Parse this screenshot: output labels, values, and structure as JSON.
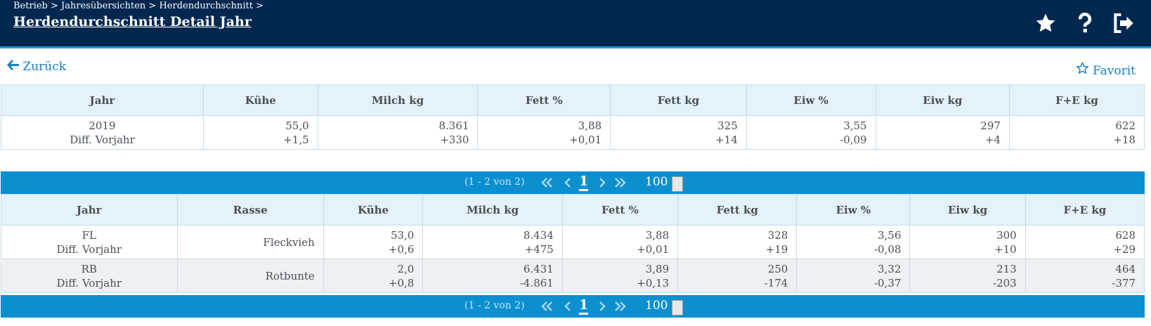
{
  "header": {
    "breadcrumb": "Betrieb > Jahresübersichten > Herdendurchschnitt >",
    "title": "Herdendurchschnitt Detail Jahr"
  },
  "nav": {
    "back": "Zurück",
    "favorite": "Favorit"
  },
  "summary_table": {
    "columns": [
      "Jahr",
      "Kühe",
      "Milch kg",
      "Fett %",
      "Fett kg",
      "Eiw %",
      "Eiw kg",
      "F+E kg"
    ],
    "rows": [
      [
        [
          "2019",
          "Diff. Vorjahr"
        ],
        [
          "55,0",
          "+1,5"
        ],
        [
          "8.361",
          "+330"
        ],
        [
          "3,88",
          "+0,01"
        ],
        [
          "325",
          "+14"
        ],
        [
          "3,55",
          "-0,09"
        ],
        [
          "297",
          "+4"
        ],
        [
          "622",
          "+18"
        ]
      ]
    ]
  },
  "paginator": {
    "report": "(1 - 2 von 2)",
    "page": "1",
    "rows_per_page": "100"
  },
  "breed_table": {
    "columns": [
      "Jahr",
      "Rasse",
      "Kühe",
      "Milch kg",
      "Fett %",
      "Fett kg",
      "Eiw %",
      "Eiw kg",
      "F+E kg"
    ],
    "rows": [
      [
        [
          "FL",
          "Diff. Vorjahr"
        ],
        [
          "Fleckvieh"
        ],
        [
          "53,0",
          "+0,6"
        ],
        [
          "8.434",
          "+475"
        ],
        [
          "3,88",
          "+0,01"
        ],
        [
          "328",
          "+19"
        ],
        [
          "3,56",
          "-0,08"
        ],
        [
          "300",
          "+10"
        ],
        [
          "628",
          "+29"
        ]
      ],
      [
        [
          "RB",
          "Diff. Vorjahr"
        ],
        [
          "Rotbunte"
        ],
        [
          "2,0",
          "+0,8"
        ],
        [
          "6.431",
          "-4.861"
        ],
        [
          "3,89",
          "+0,13"
        ],
        [
          "250",
          "-174"
        ],
        [
          "3,32",
          "-0,37"
        ],
        [
          "213",
          "-203"
        ],
        [
          "464",
          "-377"
        ]
      ]
    ]
  }
}
